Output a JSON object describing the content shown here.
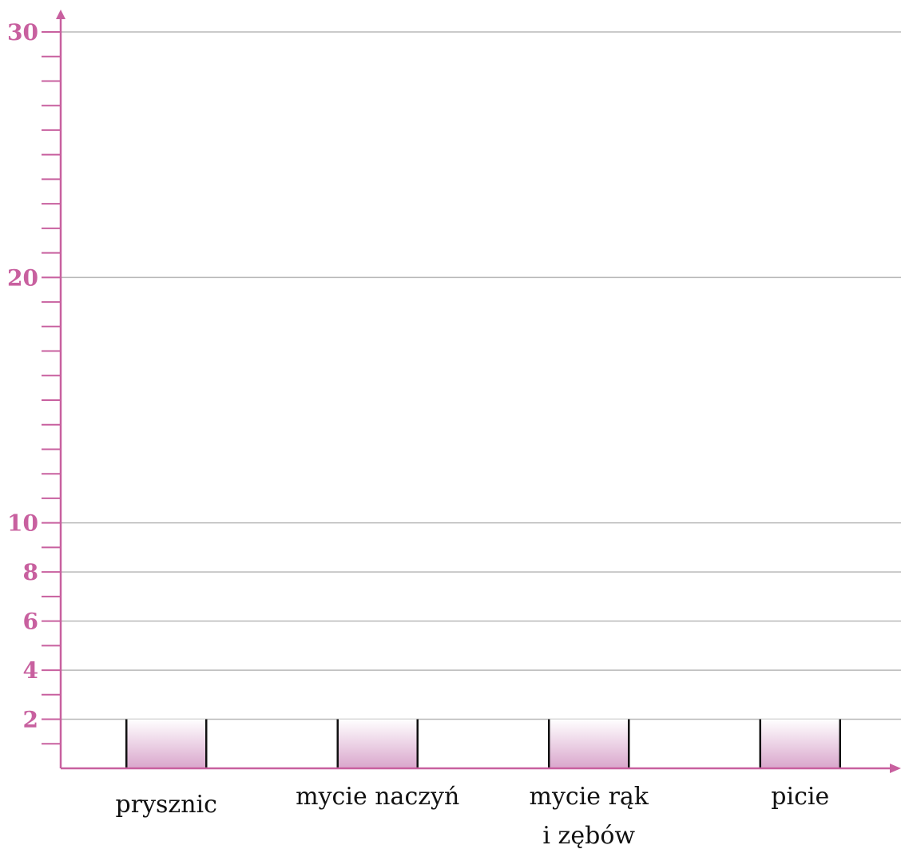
{
  "chart_data": {
    "type": "bar",
    "categories": [
      "prysznic",
      "mycie naczyń",
      "mycie rąk\ni zębów",
      "picie"
    ],
    "values": [
      2,
      2,
      2,
      2
    ],
    "ylim": [
      0,
      30
    ],
    "y_tick_labels": [
      "2",
      "4",
      "6",
      "8",
      "10",
      "20",
      "30"
    ],
    "y_minor_tick_step": 1,
    "gridlines_at": [
      2,
      4,
      6,
      8,
      10,
      20,
      30
    ],
    "grid": true,
    "legend": "none",
    "title": "",
    "xlabel": "",
    "ylabel": ""
  },
  "colors": {
    "axis": "#c8609f",
    "grid": "#b8b8b8",
    "bar_top": "#ffffff",
    "bar_bottom": "#d9a6cc",
    "bar_edge": "#111111"
  }
}
